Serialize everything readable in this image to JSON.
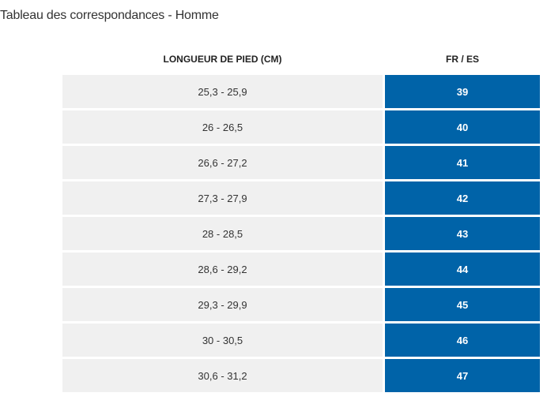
{
  "title": "Tableau des correspondances - Homme",
  "table": {
    "headers": {
      "length": "LONGUEUR DE PIED (CM)",
      "size": "FR / ES"
    },
    "rows": [
      {
        "length": "25,3 - 25,9",
        "size": "39"
      },
      {
        "length": "26 - 26,5",
        "size": "40"
      },
      {
        "length": "26,6 - 27,2",
        "size": "41"
      },
      {
        "length": "27,3 - 27,9",
        "size": "42"
      },
      {
        "length": "28 - 28,5",
        "size": "43"
      },
      {
        "length": "28,6 - 29,2",
        "size": "44"
      },
      {
        "length": "29,3 - 29,9",
        "size": "45"
      },
      {
        "length": "30 - 30,5",
        "size": "46"
      },
      {
        "length": "30,6 - 31,2",
        "size": "47"
      }
    ]
  },
  "colors": {
    "size_cell_background": "#0063a8",
    "length_cell_background": "#f0f0f0"
  }
}
